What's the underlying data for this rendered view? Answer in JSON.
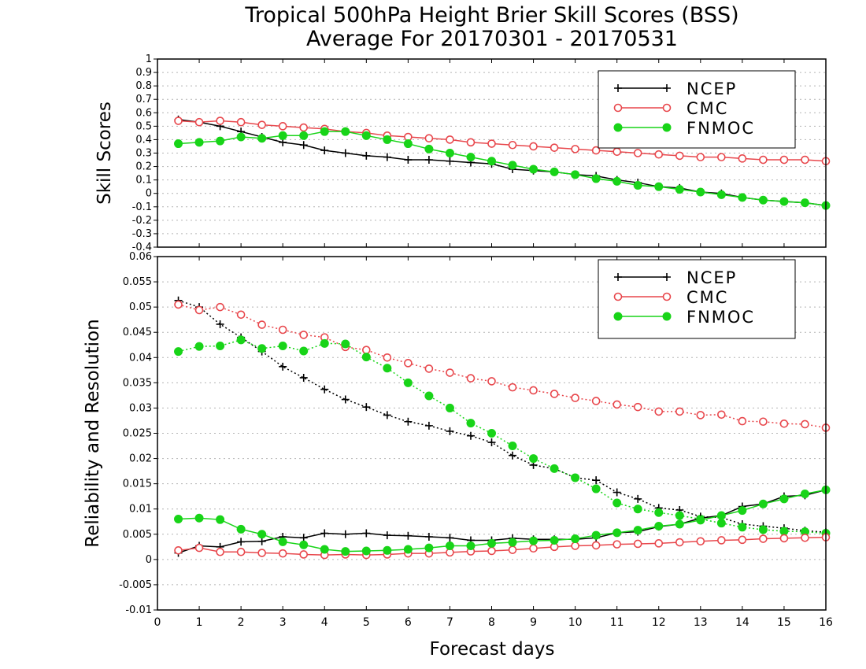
{
  "chart_data": {
    "type": "line",
    "title": [
      "Tropical 500hPa Height Brier Skill Scores (BSS)",
      "Average For 20170301 - 20170531"
    ],
    "xlabel": "Forecast days",
    "x_ticks": [
      "0",
      "1",
      "2",
      "3",
      "4",
      "5",
      "6",
      "7",
      "8",
      "9",
      "10",
      "11",
      "12",
      "13",
      "14",
      "15",
      "16"
    ],
    "xlim": [
      0,
      16
    ],
    "x": [
      0.5,
      1,
      1.5,
      2,
      2.5,
      3,
      3.5,
      4,
      4.5,
      5,
      5.5,
      6,
      6.5,
      7,
      7.5,
      8,
      8.5,
      9,
      9.5,
      10,
      10.5,
      11,
      11.5,
      12,
      12.5,
      13,
      13.5,
      14,
      14.5,
      15,
      15.5,
      16
    ],
    "grid": true,
    "colors": {
      "NCEP": "#000000",
      "CMC": "#e8474c",
      "FNMOC": "#18d418"
    },
    "panels": [
      {
        "ylabel": "Skill Scores",
        "ylim": [
          -0.4,
          1
        ],
        "y_ticks": [
          "-0.4",
          "-0.3",
          "-0.2",
          "-0.1",
          "0",
          "0.1",
          "0.2",
          "0.3",
          "0.4",
          "0.5",
          "0.6",
          "0.7",
          "0.8",
          "0.9",
          "1"
        ],
        "legend_position": "top-right",
        "series": [
          {
            "name": "NCEP",
            "style": "solid",
            "marker": "plus",
            "values": [
              0.55,
              0.53,
              0.5,
              0.46,
              0.42,
              0.38,
              0.36,
              0.32,
              0.3,
              0.28,
              0.27,
              0.25,
              0.25,
              0.24,
              0.23,
              0.22,
              0.18,
              0.17,
              0.16,
              0.14,
              0.13,
              0.1,
              0.08,
              0.05,
              0.04,
              0.01,
              0.0,
              -0.03,
              -0.05,
              -0.06,
              -0.07,
              -0.09
            ]
          },
          {
            "name": "CMC",
            "style": "solid",
            "marker": "open-circle",
            "values": [
              0.54,
              0.53,
              0.54,
              0.53,
              0.51,
              0.5,
              0.49,
              0.48,
              0.46,
              0.45,
              0.43,
              0.42,
              0.41,
              0.4,
              0.38,
              0.37,
              0.36,
              0.35,
              0.34,
              0.33,
              0.32,
              0.31,
              0.3,
              0.29,
              0.28,
              0.27,
              0.27,
              0.26,
              0.25,
              0.25,
              0.25,
              0.24
            ]
          },
          {
            "name": "FNMOC",
            "style": "solid",
            "marker": "filled-circle",
            "values": [
              0.37,
              0.38,
              0.39,
              0.42,
              0.41,
              0.43,
              0.43,
              0.46,
              0.46,
              0.43,
              0.4,
              0.37,
              0.33,
              0.3,
              0.27,
              0.24,
              0.21,
              0.18,
              0.16,
              0.14,
              0.11,
              0.09,
              0.06,
              0.05,
              0.03,
              0.01,
              -0.01,
              -0.03,
              -0.05,
              -0.06,
              -0.07,
              -0.09
            ]
          }
        ]
      },
      {
        "ylabel": "Reliability and Resolution",
        "ylim": [
          -0.01,
          0.06
        ],
        "y_ticks": [
          "-0.01",
          "-0.005",
          "0",
          "0.005",
          "0.01",
          "0.015",
          "0.02",
          "0.025",
          "0.03",
          "0.035",
          "0.04",
          "0.045",
          "0.05",
          "0.055",
          "0.06"
        ],
        "legend_position": "top-right",
        "series": [
          {
            "name": "NCEP",
            "kind": "resolution",
            "style": "dotted",
            "marker": "plus",
            "values": [
              0.0513,
              0.05,
              0.0466,
              0.044,
              0.0412,
              0.0382,
              0.036,
              0.0337,
              0.0317,
              0.0302,
              0.0286,
              0.0273,
              0.0265,
              0.0254,
              0.0245,
              0.0232,
              0.0206,
              0.0187,
              0.018,
              0.0162,
              0.0157,
              0.0133,
              0.012,
              0.0102,
              0.0098,
              0.0085,
              0.0083,
              0.007,
              0.0066,
              0.0062,
              0.0057,
              0.0054
            ]
          },
          {
            "name": "CMC",
            "kind": "resolution",
            "style": "dotted",
            "marker": "open-circle",
            "values": [
              0.0505,
              0.0494,
              0.05,
              0.0485,
              0.0465,
              0.0455,
              0.0445,
              0.044,
              0.0421,
              0.0415,
              0.04,
              0.0389,
              0.0378,
              0.037,
              0.0359,
              0.0353,
              0.0341,
              0.0335,
              0.0328,
              0.032,
              0.0314,
              0.0307,
              0.0302,
              0.0293,
              0.0293,
              0.0286,
              0.0287,
              0.0274,
              0.0273,
              0.0269,
              0.0268,
              0.0261
            ]
          },
          {
            "name": "FNMOC",
            "kind": "resolution",
            "style": "dotted",
            "marker": "filled-circle",
            "values": [
              0.0412,
              0.0422,
              0.0423,
              0.0435,
              0.0418,
              0.0423,
              0.0413,
              0.0428,
              0.0427,
              0.0401,
              0.0379,
              0.035,
              0.0324,
              0.03,
              0.027,
              0.025,
              0.0225,
              0.02,
              0.018,
              0.0162,
              0.014,
              0.0112,
              0.01,
              0.0093,
              0.0087,
              0.008,
              0.0072,
              0.0064,
              0.0059,
              0.0056,
              0.0055,
              0.0052
            ]
          },
          {
            "name": "NCEP",
            "kind": "reliability",
            "style": "solid",
            "marker": "plus",
            "values": [
              0.0013,
              0.0027,
              0.0025,
              0.0035,
              0.0036,
              0.0045,
              0.0043,
              0.0052,
              0.005,
              0.0052,
              0.0048,
              0.0047,
              0.0045,
              0.0043,
              0.0038,
              0.0038,
              0.0042,
              0.004,
              0.004,
              0.004,
              0.0043,
              0.0053,
              0.0055,
              0.0065,
              0.007,
              0.0082,
              0.0087,
              0.0105,
              0.011,
              0.0125,
              0.0127,
              0.0138
            ]
          },
          {
            "name": "CMC",
            "kind": "reliability",
            "style": "solid",
            "marker": "open-circle",
            "values": [
              0.0018,
              0.0023,
              0.0015,
              0.0015,
              0.0013,
              0.0012,
              0.001,
              0.0009,
              0.001,
              0.0009,
              0.001,
              0.0012,
              0.0012,
              0.0014,
              0.0016,
              0.0017,
              0.0019,
              0.0022,
              0.0025,
              0.0027,
              0.0028,
              0.003,
              0.0031,
              0.0032,
              0.0034,
              0.0036,
              0.0038,
              0.0039,
              0.0041,
              0.0042,
              0.0043,
              0.0044
            ]
          },
          {
            "name": "FNMOC",
            "kind": "reliability",
            "style": "solid",
            "marker": "filled-circle",
            "values": [
              0.008,
              0.0082,
              0.0079,
              0.006,
              0.005,
              0.0035,
              0.0029,
              0.002,
              0.0016,
              0.0017,
              0.0018,
              0.002,
              0.0023,
              0.0027,
              0.0027,
              0.0032,
              0.0034,
              0.0037,
              0.0038,
              0.0041,
              0.0048,
              0.0053,
              0.0058,
              0.0066,
              0.007,
              0.0078,
              0.0087,
              0.0097,
              0.011,
              0.012,
              0.013,
              0.0138
            ]
          }
        ]
      }
    ]
  }
}
